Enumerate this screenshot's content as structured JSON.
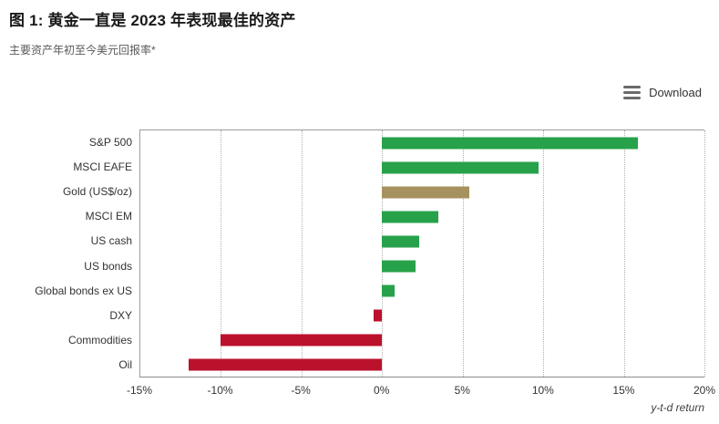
{
  "header": {
    "title": "图 1:  黄金一直是 2023 年表现最佳的资产",
    "subtitle": "主要资产年初至今美元回报率*"
  },
  "toolbar": {
    "download_label": "Download",
    "download_icon": "hamburger-menu-icon"
  },
  "colors": {
    "positive_green": "#27a24a",
    "gold": "#a6925f",
    "negative_red": "#bb112c",
    "plot_border": "#9d9d9d",
    "gridline": "#b0b0b0",
    "text_dark": "#1a1a1a",
    "text_gray": "#595959"
  },
  "chart_data": {
    "type": "bar",
    "orientation": "horizontal",
    "title": "图 1:  黄金一直是 2023 年表现最佳的资产",
    "subtitle": "主要资产年初至今美元回报率*",
    "categories": [
      "S&P 500",
      "MSCI EAFE",
      "Gold (US$/oz)",
      "MSCI EM",
      "US cash",
      "US bonds",
      "Global bonds ex US",
      "DXY",
      "Commodities",
      "Oil"
    ],
    "values": [
      15.9,
      9.7,
      5.4,
      3.5,
      2.3,
      2.1,
      0.8,
      -0.5,
      -10.0,
      -12.0
    ],
    "bar_colors": [
      "#27a24a",
      "#27a24a",
      "#a6925f",
      "#27a24a",
      "#27a24a",
      "#27a24a",
      "#27a24a",
      "#bb112c",
      "#bb112c",
      "#bb112c"
    ],
    "xlabel": "y-t-d return",
    "ylabel": "",
    "xlim": [
      -15,
      20
    ],
    "x_ticks": [
      "-15%",
      "-10%",
      "-5%",
      "0%",
      "5%",
      "10%",
      "15%",
      "20%"
    ],
    "x_tick_values": [
      -15,
      -10,
      -5,
      0,
      5,
      10,
      15,
      20
    ],
    "grid": "vertical-dotted",
    "legend": "none"
  }
}
